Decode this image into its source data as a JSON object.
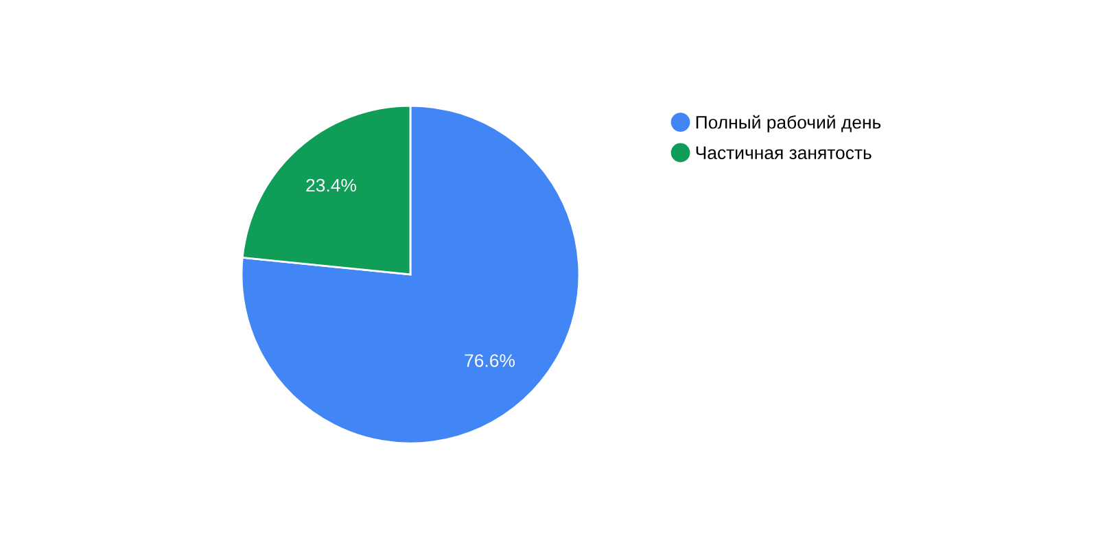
{
  "chart_data": {
    "type": "pie",
    "categories": [
      "Полный рабочий день",
      "Частичная занятость"
    ],
    "values": [
      76.6,
      23.4
    ],
    "colors": [
      "#4285f4",
      "#0f9d58"
    ],
    "value_labels": [
      "76.6%",
      "23.4%"
    ],
    "legend": "right"
  }
}
